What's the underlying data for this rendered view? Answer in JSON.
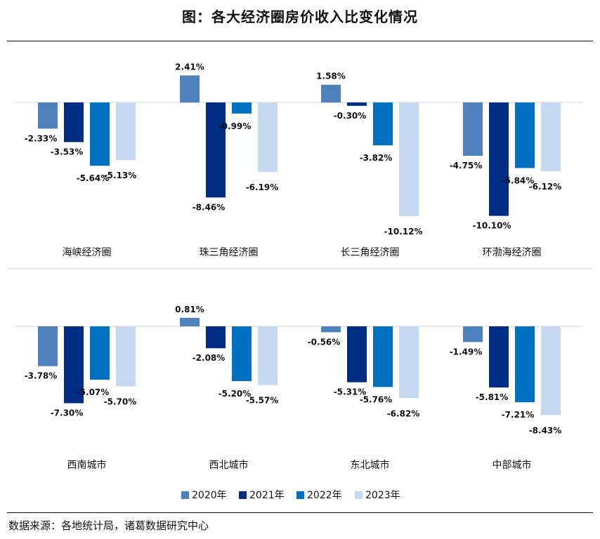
{
  "title": "图：各大经济圈房价收入比变化情况",
  "source": "数据来源：各地统计局，诸葛数据研究中心",
  "colors": {
    "2020年": "#4f81bd",
    "2021年": "#002d84",
    "2022年": "#0070c0",
    "2023年": "#c6d9f1",
    "axis": "#d0d0d0",
    "divider": "#d9d9d9"
  },
  "chart_data": {
    "type": "bar",
    "series_names": [
      "2020年",
      "2021年",
      "2022年",
      "2023年"
    ],
    "panels": [
      {
        "categories": [
          "海峡经济圈",
          "珠三角经济圈",
          "长三角经济圈",
          "环渤海经济圈"
        ],
        "series": [
          {
            "name": "2020年",
            "values": [
              -2.33,
              2.41,
              1.58,
              -4.75
            ]
          },
          {
            "name": "2021年",
            "values": [
              -3.53,
              -8.46,
              -0.3,
              -10.1
            ]
          },
          {
            "name": "2022年",
            "values": [
              -5.64,
              -0.99,
              -3.82,
              -5.84
            ]
          },
          {
            "name": "2023年",
            "values": [
              -5.13,
              -6.19,
              -10.12,
              -6.12
            ]
          }
        ]
      },
      {
        "categories": [
          "西南城市",
          "西北城市",
          "东北城市",
          "中部城市"
        ],
        "series": [
          {
            "name": "2020年",
            "values": [
              -3.78,
              0.81,
              -0.56,
              -1.49
            ]
          },
          {
            "name": "2021年",
            "values": [
              -7.3,
              -2.08,
              -5.31,
              -5.81
            ]
          },
          {
            "name": "2022年",
            "values": [
              -5.07,
              -5.2,
              -5.76,
              -7.21
            ]
          },
          {
            "name": "2023年",
            "values": [
              -5.7,
              -5.57,
              -6.82,
              -8.43
            ]
          }
        ]
      }
    ],
    "data_labels": [
      [
        [
          "-2.33%",
          "-3.53%",
          "-5.64%",
          "-5.13%"
        ],
        [
          "2.41%",
          "-8.46%",
          "-0.99%",
          "-6.19%"
        ],
        [
          "1.58%",
          "-0.30%",
          "-3.82%",
          "-10.12%"
        ],
        [
          "-4.75%",
          "-10.10%",
          "-5.84%",
          "-6.12%"
        ]
      ],
      [
        [
          "-3.78%",
          "-7.30%",
          "-5.07%",
          "-5.70%"
        ],
        [
          "0.81%",
          "-2.08%",
          "-5.20%",
          "-5.57%"
        ],
        [
          "-0.56%",
          "-5.31%",
          "-5.76%",
          "-6.82%"
        ],
        [
          "-1.49%",
          "-5.81%",
          "-7.21%",
          "-8.43%"
        ]
      ]
    ],
    "legend_position": "bottom",
    "grid": false
  }
}
